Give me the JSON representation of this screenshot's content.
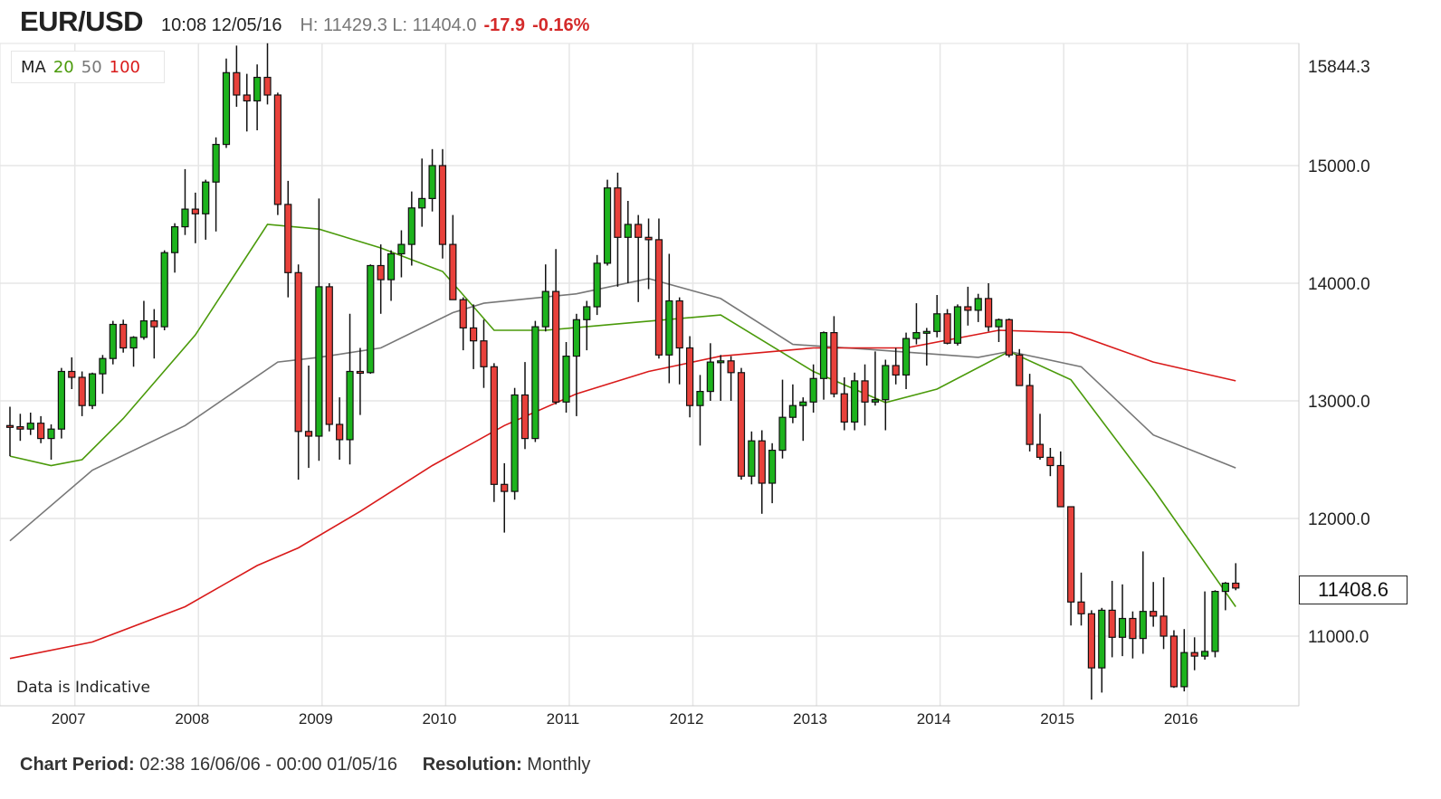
{
  "header": {
    "symbol": "EUR/USD",
    "timestamp": "10:08 12/05/16",
    "high_low": "H: 11429.3 L: 11404.0",
    "change": "-17.9",
    "change_pct": "-0.16%"
  },
  "legend": {
    "label": "MA",
    "ma20": "20",
    "ma50": "50",
    "ma100": "100"
  },
  "notice": "Data is Indicative",
  "current_price": "11408.6",
  "footer": {
    "period_label": "Chart Period:",
    "period_value": "02:38 16/06/06 - 00:00 01/05/16",
    "resolution_label": "Resolution:",
    "resolution_value": "Monthly"
  },
  "colors": {
    "up": "#1db31d",
    "down": "#e8413b",
    "ma20": "#4a9a0a",
    "ma50": "#777777",
    "ma100": "#d91a1a"
  },
  "chart_data": {
    "type": "candlestick",
    "title": "EUR/USD",
    "start_month": "2006-06",
    "resolution": "Monthly",
    "ylim": [
      10400,
      15950
    ],
    "y_ticks": [
      "11000.0",
      "12000.0",
      "13000.0",
      "14000.0",
      "15000.0",
      "15844.3"
    ],
    "y_tick_values": [
      11000,
      12000,
      13000,
      14000,
      15000,
      15844.3
    ],
    "x_ticks": [
      "2007",
      "2008",
      "2009",
      "2010",
      "2011",
      "2012",
      "2013",
      "2014",
      "2015",
      "2016"
    ],
    "x_tick_month_index": [
      7,
      19,
      31,
      43,
      55,
      67,
      79,
      91,
      103,
      115
    ],
    "ohlc": [
      [
        12790,
        12950,
        12530,
        12780
      ],
      [
        12780,
        12890,
        12660,
        12760
      ],
      [
        12760,
        12900,
        12710,
        12810
      ],
      [
        12810,
        12870,
        12640,
        12680
      ],
      [
        12680,
        12800,
        12500,
        12760
      ],
      [
        12760,
        13280,
        12680,
        13250
      ],
      [
        13250,
        13370,
        13100,
        13200
      ],
      [
        13200,
        13250,
        12870,
        12960
      ],
      [
        12960,
        13240,
        12930,
        13230
      ],
      [
        13230,
        13390,
        13060,
        13360
      ],
      [
        13360,
        13680,
        13310,
        13650
      ],
      [
        13650,
        13690,
        13410,
        13450
      ],
      [
        13450,
        13550,
        13290,
        13540
      ],
      [
        13540,
        13850,
        13520,
        13680
      ],
      [
        13680,
        13780,
        13360,
        13630
      ],
      [
        13630,
        14280,
        13600,
        14260
      ],
      [
        14260,
        14510,
        14090,
        14480
      ],
      [
        14480,
        14970,
        14410,
        14630
      ],
      [
        14630,
        14770,
        14340,
        14590
      ],
      [
        14590,
        14880,
        14370,
        14860
      ],
      [
        14860,
        15240,
        14440,
        15180
      ],
      [
        15180,
        15910,
        15150,
        15790
      ],
      [
        15790,
        16020,
        15500,
        15600
      ],
      [
        15600,
        15780,
        15290,
        15550
      ],
      [
        15550,
        15860,
        15300,
        15750
      ],
      [
        15750,
        16040,
        15520,
        15600
      ],
      [
        15600,
        15620,
        14580,
        14670
      ],
      [
        14670,
        14870,
        13880,
        14090
      ],
      [
        14090,
        14160,
        12330,
        12740
      ],
      [
        12740,
        13300,
        12430,
        12700
      ],
      [
        12700,
        14720,
        12490,
        13970
      ],
      [
        13970,
        14000,
        12740,
        12800
      ],
      [
        12800,
        13030,
        12500,
        12670
      ],
      [
        12670,
        13740,
        12460,
        13250
      ],
      [
        13250,
        13450,
        12880,
        13240
      ],
      [
        13240,
        14160,
        13230,
        14150
      ],
      [
        14150,
        14330,
        13740,
        14030
      ],
      [
        14030,
        14280,
        13850,
        14250
      ],
      [
        14250,
        14450,
        14050,
        14330
      ],
      [
        14330,
        14780,
        14150,
        14640
      ],
      [
        14640,
        15060,
        14480,
        14720
      ],
      [
        14720,
        15140,
        14610,
        15000
      ],
      [
        15000,
        15140,
        14210,
        14330
      ],
      [
        14330,
        14580,
        13860,
        13860
      ],
      [
        13860,
        13880,
        13430,
        13620
      ],
      [
        13620,
        13820,
        13270,
        13510
      ],
      [
        13510,
        13690,
        13110,
        13290
      ],
      [
        13290,
        13320,
        12140,
        12290
      ],
      [
        12290,
        12470,
        11880,
        12230
      ],
      [
        12230,
        13110,
        12160,
        13050
      ],
      [
        13050,
        13330,
        12590,
        12680
      ],
      [
        12680,
        13680,
        12650,
        13630
      ],
      [
        13630,
        14160,
        13590,
        13930
      ],
      [
        13930,
        14290,
        12970,
        12990
      ],
      [
        12990,
        13500,
        12900,
        13380
      ],
      [
        13380,
        13740,
        12870,
        13690
      ],
      [
        13690,
        13850,
        13430,
        13800
      ],
      [
        13800,
        14240,
        13730,
        14170
      ],
      [
        14170,
        14880,
        14150,
        14810
      ],
      [
        14810,
        14940,
        13970,
        14390
      ],
      [
        14390,
        14700,
        14000,
        14500
      ],
      [
        14500,
        14580,
        13840,
        14390
      ],
      [
        14390,
        14550,
        13950,
        14370
      ],
      [
        14370,
        14550,
        13360,
        13390
      ],
      [
        13390,
        14250,
        13150,
        13850
      ],
      [
        13850,
        13880,
        13140,
        13450
      ],
      [
        13450,
        13550,
        12860,
        12960
      ],
      [
        12960,
        13220,
        12620,
        13080
      ],
      [
        13080,
        13490,
        13000,
        13330
      ],
      [
        13330,
        13390,
        13000,
        13340
      ],
      [
        13340,
        13380,
        13000,
        13240
      ],
      [
        13240,
        13280,
        12330,
        12360
      ],
      [
        12360,
        12740,
        12290,
        12660
      ],
      [
        12660,
        12750,
        12040,
        12300
      ],
      [
        12300,
        12640,
        12130,
        12580
      ],
      [
        12580,
        13180,
        12510,
        12860
      ],
      [
        12860,
        13140,
        12810,
        12960
      ],
      [
        12960,
        13030,
        12660,
        12990
      ],
      [
        12990,
        13310,
        12900,
        13190
      ],
      [
        13190,
        13590,
        13010,
        13580
      ],
      [
        13580,
        13720,
        13030,
        13060
      ],
      [
        13060,
        13200,
        12750,
        12820
      ],
      [
        12820,
        13240,
        12750,
        13170
      ],
      [
        13170,
        13310,
        12790,
        12990
      ],
      [
        12990,
        13420,
        12960,
        13010
      ],
      [
        13010,
        13350,
        12750,
        13300
      ],
      [
        13300,
        13450,
        13140,
        13220
      ],
      [
        13220,
        13580,
        13100,
        13530
      ],
      [
        13530,
        13830,
        13480,
        13580
      ],
      [
        13580,
        13620,
        13300,
        13590
      ],
      [
        13590,
        13900,
        13540,
        13740
      ],
      [
        13740,
        13780,
        13480,
        13490
      ],
      [
        13490,
        13820,
        13470,
        13800
      ],
      [
        13800,
        13970,
        13640,
        13770
      ],
      [
        13770,
        13910,
        13670,
        13870
      ],
      [
        13870,
        14000,
        13590,
        13630
      ],
      [
        13630,
        13700,
        13500,
        13690
      ],
      [
        13690,
        13700,
        13370,
        13390
      ],
      [
        13390,
        13440,
        13130,
        13130
      ],
      [
        13130,
        13230,
        12570,
        12630
      ],
      [
        12630,
        12890,
        12500,
        12520
      ],
      [
        12520,
        12600,
        12360,
        12450
      ],
      [
        12450,
        12570,
        12100,
        12100
      ],
      [
        12100,
        12100,
        11090,
        11290
      ],
      [
        11290,
        11540,
        11090,
        11190
      ],
      [
        11190,
        11220,
        10460,
        10730
      ],
      [
        10730,
        11240,
        10520,
        11220
      ],
      [
        11220,
        11470,
        10820,
        10990
      ],
      [
        10990,
        11440,
        10830,
        11150
      ],
      [
        11150,
        11210,
        10810,
        10980
      ],
      [
        10980,
        11720,
        10850,
        11210
      ],
      [
        11210,
        11460,
        11080,
        11170
      ],
      [
        11170,
        11500,
        10890,
        11000
      ],
      [
        11000,
        11050,
        10560,
        10570
      ],
      [
        10570,
        11060,
        10530,
        10860
      ],
      [
        10860,
        10990,
        10710,
        10830
      ],
      [
        10830,
        11380,
        10800,
        10870
      ],
      [
        10870,
        11390,
        10820,
        11380
      ],
      [
        11380,
        11460,
        11220,
        11450
      ],
      [
        11450,
        11620,
        11390,
        11409
      ]
    ],
    "moving_averages": [
      {
        "name": "MA 20",
        "key": "ma20",
        "points": [
          [
            0,
            12530
          ],
          [
            4,
            12450
          ],
          [
            7,
            12500
          ],
          [
            11,
            12850
          ],
          [
            18,
            13560
          ],
          [
            25,
            14500
          ],
          [
            30,
            14460
          ],
          [
            36,
            14300
          ],
          [
            42,
            14100
          ],
          [
            47,
            13600
          ],
          [
            52,
            13600
          ],
          [
            61,
            13670
          ],
          [
            69,
            13730
          ],
          [
            78,
            13250
          ],
          [
            85,
            12985
          ],
          [
            90,
            13100
          ],
          [
            97,
            13420
          ],
          [
            103,
            13180
          ],
          [
            111,
            12250
          ],
          [
            119,
            11250
          ]
        ]
      },
      {
        "name": "MA 50",
        "key": "ma50",
        "points": [
          [
            0,
            11810
          ],
          [
            8,
            12410
          ],
          [
            17,
            12790
          ],
          [
            26,
            13330
          ],
          [
            30,
            13370
          ],
          [
            36,
            13450
          ],
          [
            43,
            13750
          ],
          [
            46,
            13830
          ],
          [
            55,
            13910
          ],
          [
            62,
            14040
          ],
          [
            69,
            13870
          ],
          [
            76,
            13480
          ],
          [
            83,
            13440
          ],
          [
            94,
            13370
          ],
          [
            97,
            13420
          ],
          [
            104,
            13290
          ],
          [
            111,
            12710
          ],
          [
            119,
            12430
          ]
        ]
      },
      {
        "name": "MA 100",
        "key": "ma100",
        "points": [
          [
            0,
            10810
          ],
          [
            8,
            10950
          ],
          [
            17,
            11250
          ],
          [
            24,
            11600
          ],
          [
            28,
            11750
          ],
          [
            34,
            12060
          ],
          [
            41,
            12450
          ],
          [
            48,
            12790
          ],
          [
            55,
            13060
          ],
          [
            62,
            13250
          ],
          [
            69,
            13380
          ],
          [
            78,
            13450
          ],
          [
            87,
            13450
          ],
          [
            96,
            13600
          ],
          [
            103,
            13580
          ],
          [
            111,
            13330
          ],
          [
            119,
            13170
          ]
        ]
      }
    ]
  }
}
